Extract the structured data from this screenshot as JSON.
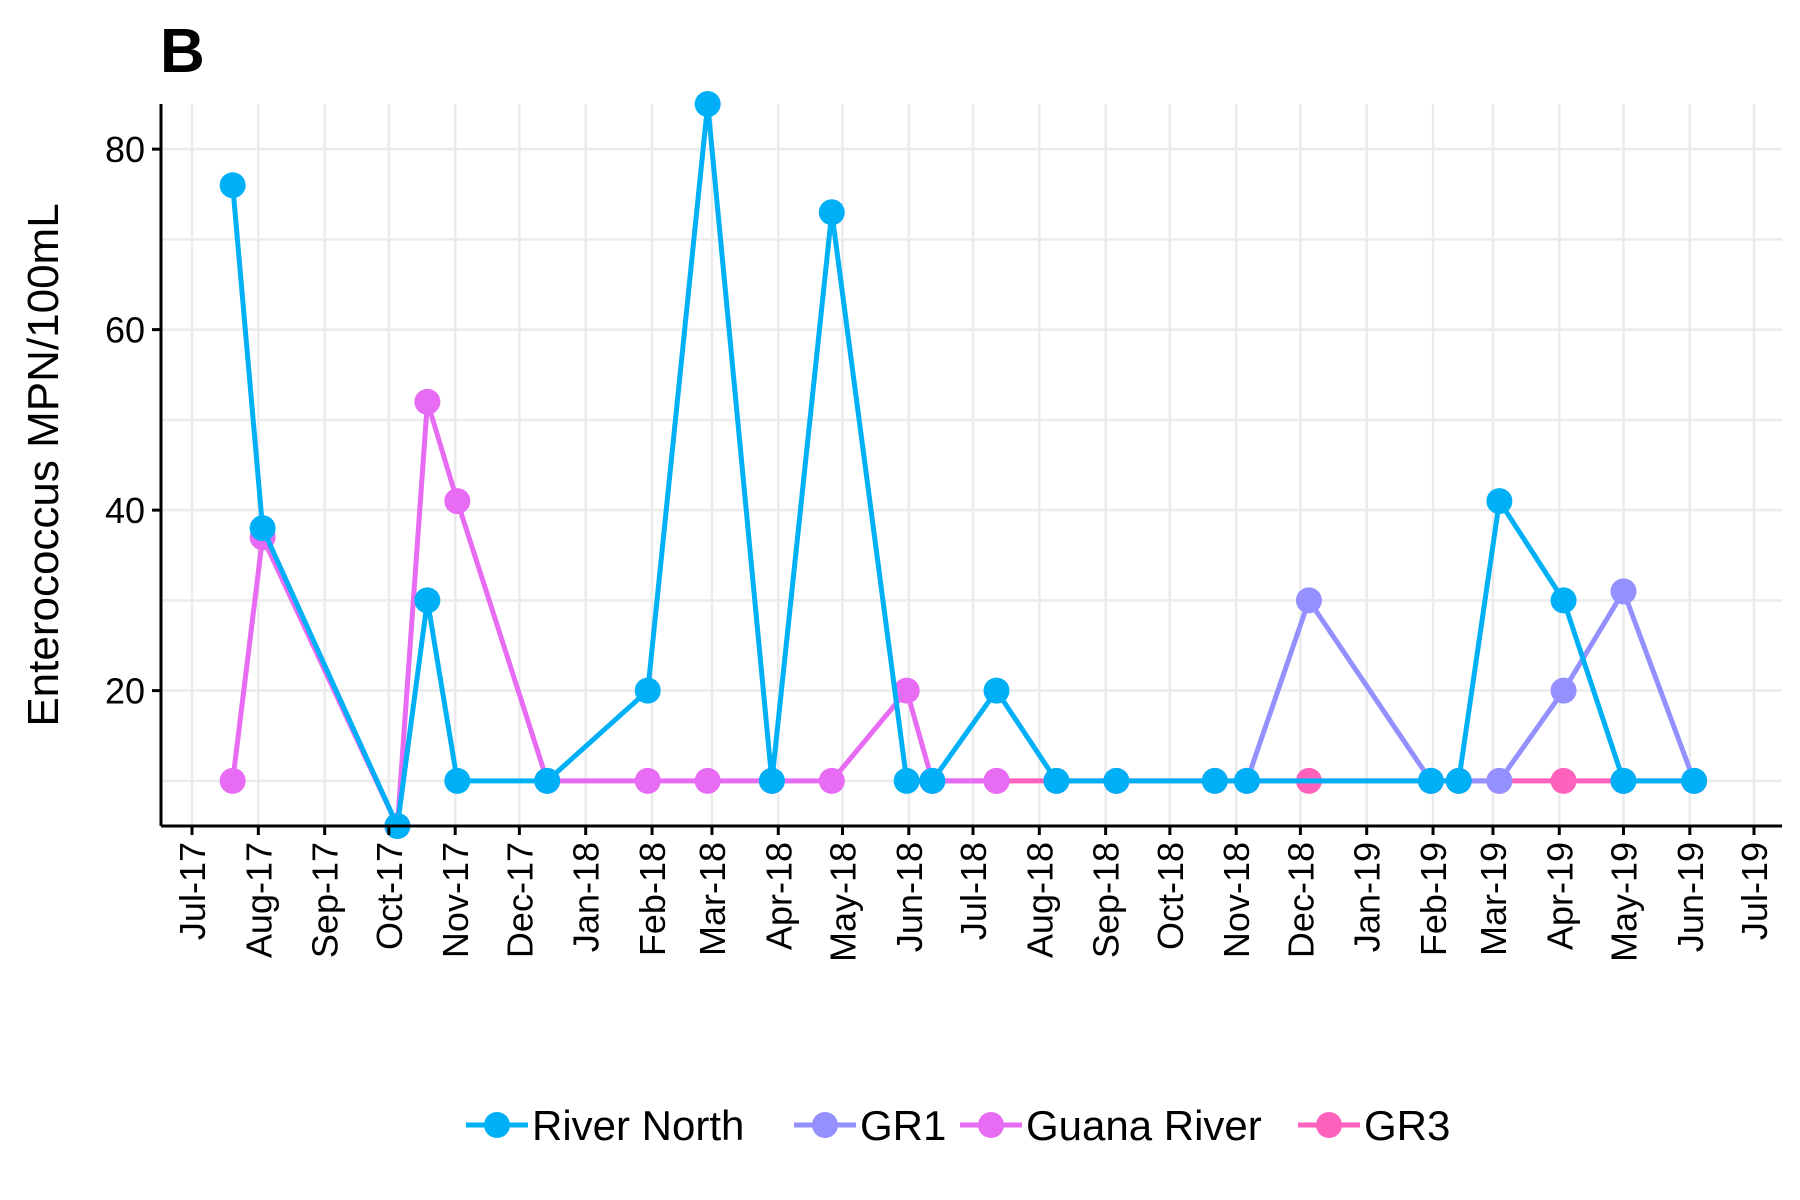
{
  "chart_data": {
    "type": "line",
    "panel_label": "B",
    "title": "",
    "xlabel": "",
    "ylabel": "Enterococcus MPN/100mL",
    "ylim": [
      5,
      85
    ],
    "y_ticks": [
      20,
      40,
      60,
      80
    ],
    "xlim": [
      "2017-07-01",
      "2019-07-01"
    ],
    "x_ticks": [
      {
        "date": "2017-07-01",
        "label": "Jul-17"
      },
      {
        "date": "2017-08-01",
        "label": "Aug-17"
      },
      {
        "date": "2017-09-01",
        "label": "Sep-17"
      },
      {
        "date": "2017-10-01",
        "label": "Oct-17"
      },
      {
        "date": "2017-11-01",
        "label": "Nov-17"
      },
      {
        "date": "2017-12-01",
        "label": "Dec-17"
      },
      {
        "date": "2018-01-01",
        "label": "Jan-18"
      },
      {
        "date": "2018-02-01",
        "label": "Feb-18"
      },
      {
        "date": "2018-03-01",
        "label": "Mar-18"
      },
      {
        "date": "2018-04-01",
        "label": "Apr-18"
      },
      {
        "date": "2018-05-01",
        "label": "May-18"
      },
      {
        "date": "2018-06-01",
        "label": "Jun-18"
      },
      {
        "date": "2018-07-01",
        "label": "Jul-18"
      },
      {
        "date": "2018-08-01",
        "label": "Aug-18"
      },
      {
        "date": "2018-09-01",
        "label": "Sep-18"
      },
      {
        "date": "2018-10-01",
        "label": "Oct-18"
      },
      {
        "date": "2018-11-01",
        "label": "Nov-18"
      },
      {
        "date": "2018-12-01",
        "label": "Dec-18"
      },
      {
        "date": "2019-01-01",
        "label": "Jan-19"
      },
      {
        "date": "2019-02-01",
        "label": "Feb-19"
      },
      {
        "date": "2019-03-01",
        "label": "Mar-19"
      },
      {
        "date": "2019-04-01",
        "label": "Apr-19"
      },
      {
        "date": "2019-05-01",
        "label": "May-19"
      },
      {
        "date": "2019-06-01",
        "label": "Jun-19"
      },
      {
        "date": "2019-07-01",
        "label": "Jul-19"
      }
    ],
    "grid": true,
    "legend_position": "bottom",
    "series": [
      {
        "name": "River North",
        "color": "#00B0F6",
        "points": [
          {
            "x": "2017-07-20",
            "y": 76
          },
          {
            "x": "2017-08-03",
            "y": 38
          },
          {
            "x": "2017-10-05",
            "y": 5
          },
          {
            "x": "2017-10-19",
            "y": 30
          },
          {
            "x": "2017-11-02",
            "y": 10
          },
          {
            "x": "2017-12-14",
            "y": 10
          },
          {
            "x": "2018-01-30",
            "y": 20
          },
          {
            "x": "2018-02-27",
            "y": 85
          },
          {
            "x": "2018-03-29",
            "y": 10
          },
          {
            "x": "2018-04-26",
            "y": 73
          },
          {
            "x": "2018-05-31",
            "y": 10
          },
          {
            "x": "2018-06-12",
            "y": 10
          },
          {
            "x": "2018-07-12",
            "y": 20
          },
          {
            "x": "2018-08-09",
            "y": 10
          },
          {
            "x": "2018-09-06",
            "y": 10
          },
          {
            "x": "2018-10-22",
            "y": 10
          },
          {
            "x": "2018-11-06",
            "y": 10
          },
          {
            "x": "2019-01-31",
            "y": 10
          },
          {
            "x": "2019-02-13",
            "y": 10
          },
          {
            "x": "2019-03-04",
            "y": 41
          },
          {
            "x": "2019-04-03",
            "y": 30
          },
          {
            "x": "2019-05-01",
            "y": 10
          },
          {
            "x": "2019-06-03",
            "y": 10
          }
        ]
      },
      {
        "name": "GR1",
        "color": "#9590FF",
        "points": [
          {
            "x": "2018-11-06",
            "y": 10
          },
          {
            "x": "2018-12-05",
            "y": 30
          },
          {
            "x": "2019-01-31",
            "y": 10
          },
          {
            "x": "2019-03-04",
            "y": 10
          },
          {
            "x": "2019-04-03",
            "y": 20
          },
          {
            "x": "2019-05-01",
            "y": 31
          },
          {
            "x": "2019-06-03",
            "y": 10
          }
        ]
      },
      {
        "name": "Guana River",
        "color": "#E76BF3",
        "points": [
          {
            "x": "2017-07-20",
            "y": 10
          },
          {
            "x": "2017-08-03",
            "y": 37
          },
          {
            "x": "2017-10-05",
            "y": 5
          },
          {
            "x": "2017-10-19",
            "y": 52
          },
          {
            "x": "2017-11-02",
            "y": 41
          },
          {
            "x": "2017-12-14",
            "y": 10
          },
          {
            "x": "2018-01-30",
            "y": 10
          },
          {
            "x": "2018-02-27",
            "y": 10
          },
          {
            "x": "2018-03-29",
            "y": 10
          },
          {
            "x": "2018-04-26",
            "y": 10
          },
          {
            "x": "2018-05-31",
            "y": 20
          },
          {
            "x": "2018-06-12",
            "y": 10
          },
          {
            "x": "2018-07-12",
            "y": 10
          }
        ]
      },
      {
        "name": "GR3",
        "color": "#FF62BC",
        "points": [
          {
            "x": "2018-06-12",
            "y": 10
          },
          {
            "x": "2018-07-12",
            "y": 10
          },
          {
            "x": "2018-08-09",
            "y": 10
          },
          {
            "x": "2018-09-06",
            "y": 10
          },
          {
            "x": "2018-10-22",
            "y": 10
          },
          {
            "x": "2018-11-06",
            "y": 10
          },
          {
            "x": "2018-12-05",
            "y": 10
          },
          {
            "x": "2019-01-31",
            "y": 10
          },
          {
            "x": "2019-02-13",
            "y": 10
          },
          {
            "x": "2019-03-04",
            "y": 10
          },
          {
            "x": "2019-04-03",
            "y": 10
          },
          {
            "x": "2019-05-01",
            "y": 10
          },
          {
            "x": "2019-06-03",
            "y": 10
          }
        ]
      }
    ],
    "draw_order": [
      "GR3",
      "Guana River",
      "GR1",
      "River North"
    ]
  }
}
